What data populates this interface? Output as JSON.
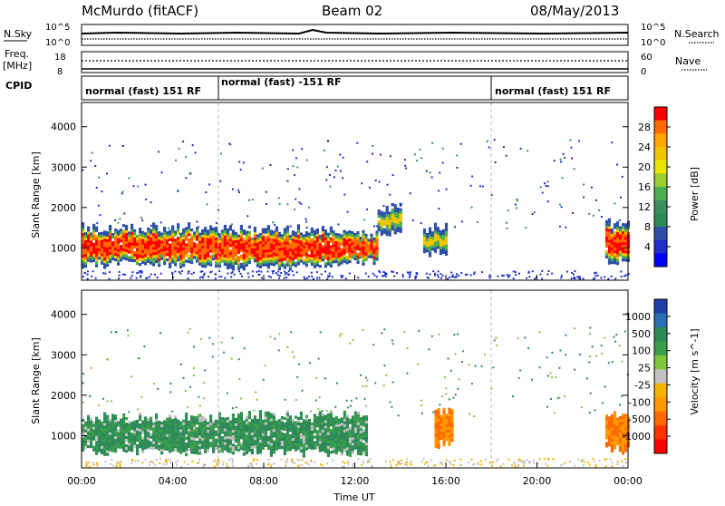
{
  "header": {
    "station": "McMurdo (fitACF)",
    "beam": "Beam 02",
    "date": "08/May/2013"
  },
  "summary_panels": {
    "nsky_label": "N.Sky",
    "nsearch_label": "N.Search",
    "freq_label_1": "Freq.",
    "freq_label_2": "[MHz]",
    "nave_label": "Nave",
    "cpid_label": "CPID",
    "noise_ticks": [
      "10^5",
      "10^0"
    ],
    "noise_right_ticks": [
      "10^5",
      "10^0"
    ],
    "freq_ticks": [
      "18",
      "8"
    ],
    "nave_ticks": [
      "60",
      "0"
    ]
  },
  "programs": [
    {
      "name": "normal (fast) 151 RF",
      "start_hour": 0,
      "end_hour": 6
    },
    {
      "name": "normal (fast) -151 RF",
      "start_hour": 6,
      "end_hour": 18
    },
    {
      "name": "normal (fast) 151 RF",
      "start_hour": 18,
      "end_hour": 24
    }
  ],
  "time_axis": {
    "label": "Time UT",
    "ticks": [
      "00:00",
      "04:00",
      "08:00",
      "12:00",
      "16:00",
      "20:00",
      "00:00"
    ]
  },
  "chart_data": [
    {
      "type": "heatmap",
      "quantity": "Power",
      "xlabel": "Time UT",
      "ylabel": "Slant Range [km]",
      "x_range_hours": [
        0,
        24
      ],
      "ylim": [
        200,
        4600
      ],
      "y_ticks": [
        1000,
        2000,
        3000,
        4000
      ],
      "colorbar_label": "Power [dB]",
      "colorbar_ticks": [
        "28",
        "24",
        "20",
        "16",
        "12",
        "8",
        "4"
      ],
      "colorbar_colors": [
        "#ff0000",
        "#ff6a00",
        "#ffa500",
        "#f2c400",
        "#e6e600",
        "#9acd32",
        "#4caf50",
        "#3b8f5f",
        "#2e8b57",
        "#2f4fa8",
        "#1e30c8",
        "#0000ff"
      ],
      "regions": [
        {
          "t0": 0.0,
          "t1": 6.0,
          "r0": 650,
          "r1": 1500,
          "level": "strong"
        },
        {
          "t0": 6.0,
          "t1": 11.0,
          "r0": 600,
          "r1": 1450,
          "level": "strong"
        },
        {
          "t0": 11.0,
          "t1": 13.0,
          "r0": 700,
          "r1": 1350,
          "level": "strong"
        },
        {
          "t0": 13.0,
          "t1": 14.0,
          "r0": 1400,
          "r1": 2000,
          "level": "medium"
        },
        {
          "t0": 15.0,
          "t1": 16.0,
          "r0": 900,
          "r1": 1500,
          "level": "medium"
        },
        {
          "t0": 23.0,
          "t1": 24.0,
          "r0": 700,
          "r1": 1600,
          "level": "strong"
        }
      ]
    },
    {
      "type": "heatmap",
      "quantity": "Velocity",
      "xlabel": "Time UT",
      "ylabel": "Slant Range [km]",
      "x_range_hours": [
        0,
        24
      ],
      "ylim": [
        200,
        4600
      ],
      "y_ticks": [
        1000,
        2000,
        3000,
        4000
      ],
      "colorbar_label": "Velocity [m s^-1]",
      "colorbar_ticks": [
        "1000",
        "500",
        "100",
        "25",
        "-25",
        "-100",
        "-500",
        "-1000"
      ],
      "colorbar_colors": [
        "#1f3ea8",
        "#2a6fb0",
        "#2e8b57",
        "#3b9e4a",
        "#7fc63a",
        "#c0c0c0",
        "#f2b400",
        "#ff9900",
        "#ff6a00",
        "#ff3300",
        "#ff0000"
      ],
      "regions": [
        {
          "t0": 0.0,
          "t1": 6.0,
          "r0": 650,
          "r1": 1450,
          "level": "positive"
        },
        {
          "t0": 6.0,
          "t1": 12.5,
          "r0": 600,
          "r1": 1500,
          "level": "positive"
        },
        {
          "t0": 15.5,
          "t1": 16.3,
          "r0": 800,
          "r1": 1600,
          "level": "negative"
        },
        {
          "t0": 23.0,
          "t1": 24.0,
          "r0": 700,
          "r1": 1500,
          "level": "negative"
        }
      ]
    }
  ]
}
